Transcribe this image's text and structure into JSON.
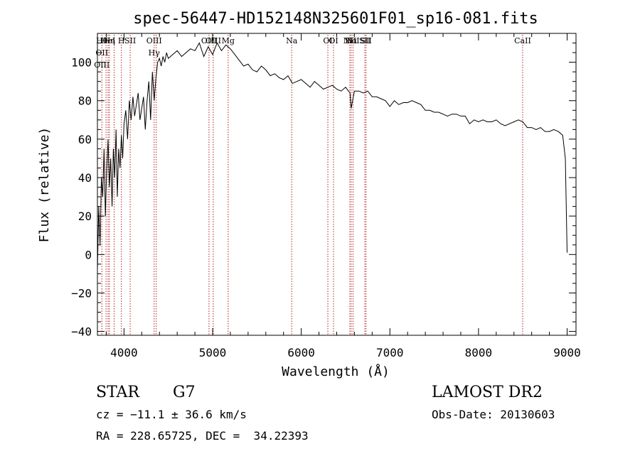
{
  "chart_data": {
    "type": "line",
    "title": "spec-56447-HD152148N325601F01_sp16-081.fits",
    "xlabel": "Wavelength (Å)",
    "ylabel": "Flux (relative)",
    "xlim": [
      3700,
      9100
    ],
    "ylim": [
      -42,
      115
    ],
    "xticks": [
      4000,
      5000,
      6000,
      7000,
      8000,
      9000
    ],
    "yticks": [
      -40,
      -20,
      0,
      20,
      40,
      60,
      80,
      100
    ],
    "grid": false,
    "line_color": "#000000",
    "marker_color": "#b22222",
    "series": [
      {
        "x": [
          3700,
          3715,
          3730,
          3745,
          3760,
          3775,
          3790,
          3805,
          3820,
          3835,
          3850,
          3865,
          3880,
          3895,
          3910,
          3925,
          3940,
          3955,
          3970,
          3985,
          4000,
          4020,
          4040,
          4060,
          4080,
          4100,
          4120,
          4140,
          4160,
          4180,
          4200,
          4220,
          4240,
          4260,
          4280,
          4300,
          4320,
          4340,
          4360,
          4380,
          4400,
          4420,
          4440,
          4460,
          4480,
          4500,
          4550,
          4600,
          4650,
          4700,
          4750,
          4800,
          4850,
          4900,
          4950,
          5000,
          5050,
          5100,
          5150,
          5200,
          5250,
          5300,
          5350,
          5400,
          5450,
          5500,
          5550,
          5600,
          5650,
          5700,
          5750,
          5800,
          5850,
          5900,
          5950,
          6000,
          6050,
          6100,
          6150,
          6200,
          6250,
          6300,
          6350,
          6400,
          6450,
          6500,
          6550,
          6563,
          6600,
          6650,
          6700,
          6750,
          6800,
          6850,
          6900,
          6950,
          7000,
          7050,
          7100,
          7150,
          7200,
          7250,
          7300,
          7350,
          7400,
          7450,
          7500,
          7550,
          7600,
          7650,
          7700,
          7750,
          7800,
          7850,
          7900,
          7950,
          8000,
          8050,
          8100,
          8150,
          8200,
          8250,
          8300,
          8350,
          8400,
          8450,
          8500,
          8550,
          8600,
          8650,
          8700,
          8750,
          8800,
          8850,
          8900,
          8950,
          8980,
          9000
        ],
        "y": [
          -8,
          25,
          5,
          40,
          30,
          55,
          20,
          45,
          60,
          35,
          50,
          25,
          55,
          40,
          65,
          30,
          55,
          45,
          62,
          50,
          68,
          75,
          60,
          80,
          70,
          82,
          72,
          78,
          84,
          70,
          76,
          82,
          65,
          80,
          90,
          70,
          95,
          80,
          92,
          100,
          102,
          98,
          103,
          100,
          105,
          102,
          104,
          106,
          103,
          105,
          107,
          106,
          110,
          103,
          108,
          104,
          110,
          106,
          109,
          107,
          104,
          101,
          98,
          99,
          96,
          95,
          98,
          96,
          93,
          94,
          92,
          91,
          93,
          89,
          90,
          91,
          89,
          87,
          90,
          88,
          86,
          87,
          88,
          86,
          85,
          87,
          84,
          76,
          85,
          85,
          84,
          85,
          82,
          82,
          81,
          80,
          77,
          80,
          78,
          79,
          79,
          80,
          79,
          78,
          75,
          75,
          74,
          74,
          73,
          72,
          73,
          73,
          72,
          72,
          68,
          70,
          69,
          70,
          69,
          69,
          70,
          68,
          67,
          68,
          69,
          70,
          69,
          66,
          66,
          65,
          66,
          64,
          64,
          65,
          64,
          62,
          50,
          1
        ]
      }
    ],
    "line_markers": [
      {
        "x": 3750,
        "labels": [
          "Hθ",
          "OII",
          "OIII"
        ]
      },
      {
        "x": 3797,
        "labels": []
      },
      {
        "x": 3820,
        "labels": [
          "HeI"
        ]
      },
      {
        "x": 3835,
        "labels": [
          "Hη"
        ]
      },
      {
        "x": 3889,
        "labels": []
      },
      {
        "x": 3970,
        "labels": [
          "H"
        ]
      },
      {
        "x": 4070,
        "labels": [
          "SII"
        ]
      },
      {
        "x": 4340,
        "labels": [
          "OIII",
          "Hγ"
        ]
      },
      {
        "x": 4363,
        "labels": []
      },
      {
        "x": 4959,
        "labels": [
          "OIII"
        ]
      },
      {
        "x": 5007,
        "labels": [
          "OIII"
        ]
      },
      {
        "x": 5175,
        "labels": [
          "Mg"
        ]
      },
      {
        "x": 5892,
        "labels": [
          "Na"
        ]
      },
      {
        "x": 6300,
        "labels": [
          "OI"
        ]
      },
      {
        "x": 6364,
        "labels": [
          "OI"
        ]
      },
      {
        "x": 6548,
        "labels": [
          "NII"
        ]
      },
      {
        "x": 6563,
        "labels": [
          "Hα"
        ]
      },
      {
        "x": 6584,
        "labels": [
          "NII"
        ]
      },
      {
        "x": 6717,
        "labels": [
          "SII"
        ]
      },
      {
        "x": 6731,
        "labels": [
          "SII"
        ]
      },
      {
        "x": 8498,
        "labels": [
          "CaII"
        ]
      }
    ]
  },
  "info": {
    "object_class": "STAR",
    "subclass": "G7",
    "survey": "LAMOST DR2",
    "cz": "cz = −11.1 ± 36.6 km/s",
    "obs_date": "Obs-Date: 20130603",
    "coords": "RA = 228.65725, DEC =  34.22393"
  }
}
